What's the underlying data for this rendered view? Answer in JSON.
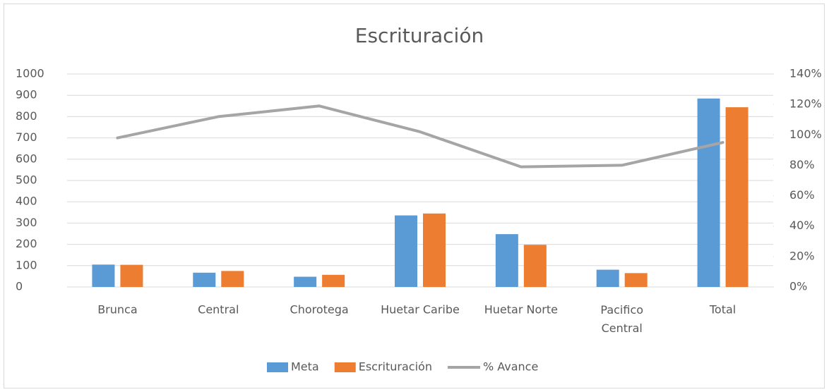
{
  "chart_data": {
    "type": "bar",
    "title": "Escrituración",
    "categories": [
      "Brunca",
      "Central",
      "Chorotega",
      "Huetar Caribe",
      "Huetar Norte",
      "Pacifico Central",
      "Total"
    ],
    "series": [
      {
        "name": "Meta",
        "color": "#5b9bd5",
        "values": [
          105,
          67,
          48,
          336,
          248,
          81,
          885
        ]
      },
      {
        "name": "Escrituración",
        "color": "#ed7d31",
        "values": [
          104,
          75,
          57,
          345,
          198,
          65,
          844
        ]
      },
      {
        "name": "% Avance",
        "color": "#a5a5a5",
        "type": "line",
        "axis": "y2",
        "values": [
          98,
          112,
          119,
          102,
          79,
          80,
          95
        ]
      }
    ],
    "ylim": [
      0,
      1000
    ],
    "yticks": [
      0,
      100,
      200,
      300,
      400,
      500,
      600,
      700,
      800,
      900,
      1000
    ],
    "y2lim": [
      0,
      140
    ],
    "y2ticks": [
      {
        "value": 0,
        "label": "0%"
      },
      {
        "value": 20,
        "label": "20%"
      },
      {
        "value": 40,
        "label": "40%"
      },
      {
        "value": 60,
        "label": "60%"
      },
      {
        "value": 80,
        "label": "80%"
      },
      {
        "value": 100,
        "label": "100%"
      },
      {
        "value": 120,
        "label": "120%"
      },
      {
        "value": 140,
        "label": "140%"
      }
    ],
    "grid": true,
    "legend": "bottom"
  }
}
